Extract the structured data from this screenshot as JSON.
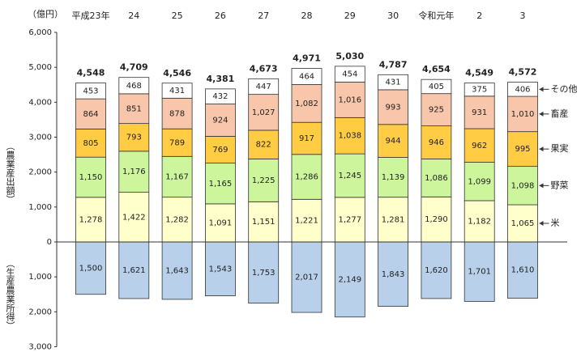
{
  "chart_data": {
    "type": "bar",
    "stacked": true,
    "unit": "（億円）",
    "ylabel": "（農業産出額）",
    "ylabel_lower": "（生産農業所得）",
    "categories": [
      "平成23年",
      "24",
      "25",
      "26",
      "27",
      "28",
      "29",
      "30",
      "令和元年",
      "2",
      "3"
    ],
    "series": [
      {
        "name": "米",
        "color": "#ffffcc",
        "values": [
          1278,
          1422,
          1282,
          1091,
          1151,
          1221,
          1277,
          1281,
          1290,
          1182,
          1065
        ],
        "value_labels": [
          "1,278",
          "1,422",
          "1,282",
          "1,091",
          "1,151",
          "1,221",
          "1,277",
          "1,281",
          "1,290",
          "1,182",
          "1,065"
        ]
      },
      {
        "name": "野菜",
        "color": "#ccf59c",
        "values": [
          1150,
          1176,
          1167,
          1165,
          1225,
          1286,
          1245,
          1139,
          1086,
          1099,
          1098
        ],
        "value_labels": [
          "1,150",
          "1,176",
          "1,167",
          "1,165",
          "1,225",
          "1,286",
          "1,245",
          "1,139",
          "1,086",
          "1,099",
          "1,098"
        ]
      },
      {
        "name": "果実",
        "color": "#ffcc44",
        "values": [
          805,
          793,
          789,
          769,
          822,
          917,
          1038,
          944,
          946,
          962,
          995
        ],
        "value_labels": [
          "805",
          "793",
          "789",
          "769",
          "822",
          "917",
          "1,038",
          "944",
          "946",
          "962",
          "995"
        ]
      },
      {
        "name": "畜産",
        "color": "#f8c6aa",
        "values": [
          864,
          851,
          878,
          924,
          1027,
          1082,
          1016,
          993,
          925,
          931,
          1010
        ],
        "value_labels": [
          "864",
          "851",
          "878",
          "924",
          "1,027",
          "1,082",
          "1,016",
          "993",
          "925",
          "931",
          "1,010"
        ]
      },
      {
        "name": "その他",
        "color": "#ffffff",
        "values": [
          453,
          468,
          431,
          432,
          447,
          464,
          454,
          431,
          405,
          375,
          406
        ]
      }
    ],
    "totals": {
      "values": [
        4548,
        4709,
        4546,
        4381,
        4673,
        4971,
        5030,
        4787,
        4654,
        4549,
        4572
      ],
      "value_labels": [
        "4,548",
        "4,709",
        "4,546",
        "4,381",
        "4,673",
        "4,971",
        "5,030",
        "4,787",
        "4,654",
        "4,549",
        "4,572"
      ]
    },
    "lower_series": {
      "color": "#b8d0ea",
      "values": [
        -1500,
        -1621,
        -1643,
        -1543,
        -1753,
        -2017,
        -2149,
        -1843,
        -1620,
        -1701,
        -1610
      ],
      "value_labels": [
        "1,500",
        "1,621",
        "1,643",
        "1,543",
        "1,753",
        "2,017",
        "2,149",
        "1,843",
        "1,620",
        "1,701",
        "1,610"
      ]
    },
    "ylim": [
      -3000,
      6000
    ],
    "yticks": [
      {
        "value": -3000,
        "label": "3,000"
      },
      {
        "value": -2000,
        "label": "2,000"
      },
      {
        "value": -1000,
        "label": "1,000"
      },
      0,
      {
        "value": 1000,
        "label": "1,000"
      },
      {
        "value": 2000,
        "label": "2,000"
      },
      {
        "value": 3000,
        "label": "3,000"
      },
      {
        "value": 4000,
        "label": "4,000"
      },
      {
        "value": 5000,
        "label": "5,000"
      },
      {
        "value": 6000,
        "label": "6,000"
      }
    ]
  }
}
